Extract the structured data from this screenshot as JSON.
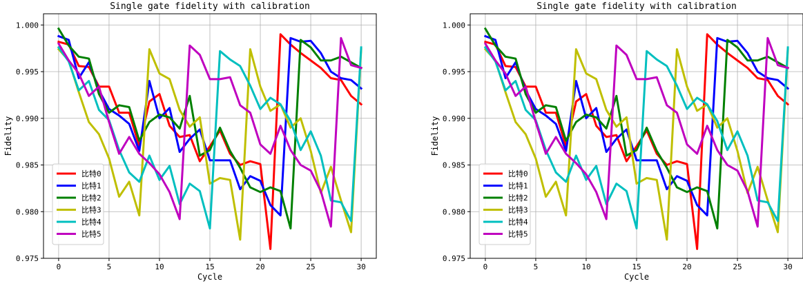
{
  "chart_data": [
    {
      "type": "line",
      "title": "Single gate fidelity with calibration",
      "xlabel": "Cycle",
      "ylabel": "Fidelity",
      "xlim": [
        -1.5,
        31.5
      ],
      "ylim": [
        0.975,
        1.0012
      ],
      "xticks": [
        "0",
        "5",
        "10",
        "15",
        "20",
        "25",
        "30"
      ],
      "yticks": [
        "0.975",
        "0.980",
        "0.985",
        "0.990",
        "0.995",
        "1.000"
      ],
      "grid": true,
      "legend_position": "lower-left",
      "x": [
        0,
        1,
        2,
        3,
        4,
        5,
        6,
        7,
        8,
        9,
        10,
        11,
        12,
        13,
        14,
        15,
        16,
        17,
        18,
        19,
        20,
        21,
        22,
        23,
        24,
        25,
        26,
        27,
        28,
        29,
        30
      ],
      "series": [
        {
          "name": "比特0",
          "color": "#ff0000",
          "values": [
            0.9982,
            0.9979,
            0.9956,
            0.9955,
            0.9934,
            0.9934,
            0.9906,
            0.9906,
            0.987,
            0.9918,
            0.9926,
            0.9892,
            0.988,
            0.9882,
            0.9854,
            0.987,
            0.9887,
            0.9862,
            0.985,
            0.9854,
            0.9851,
            0.976,
            0.999,
            0.9979,
            0.997,
            0.9962,
            0.9954,
            0.9943,
            0.9941,
            0.9924,
            0.9915
          ]
        },
        {
          "name": "比特1",
          "color": "#0000ff",
          "values": [
            0.9988,
            0.9984,
            0.9943,
            0.996,
            0.993,
            0.991,
            0.9903,
            0.9894,
            0.9865,
            0.994,
            0.99,
            0.9911,
            0.9864,
            0.9878,
            0.9888,
            0.9855,
            0.9855,
            0.9855,
            0.9824,
            0.9838,
            0.9833,
            0.9807,
            0.9796,
            0.9986,
            0.9982,
            0.9983,
            0.997,
            0.995,
            0.9943,
            0.9941,
            0.9932
          ]
        },
        {
          "name": "比特2",
          "color": "#008000",
          "values": [
            0.9996,
            0.9978,
            0.9966,
            0.9964,
            0.9926,
            0.9906,
            0.9914,
            0.9912,
            0.9876,
            0.9896,
            0.9904,
            0.9901,
            0.9889,
            0.9924,
            0.986,
            0.9866,
            0.989,
            0.9865,
            0.9847,
            0.9826,
            0.9821,
            0.9826,
            0.9822,
            0.9782,
            0.9984,
            0.9976,
            0.9962,
            0.9962,
            0.9966,
            0.996,
            0.9954
          ]
        },
        {
          "name": "比特3",
          "color": "#bfbf00",
          "values": [
            0.9974,
            0.9962,
            0.9928,
            0.9896,
            0.9883,
            0.9857,
            0.9816,
            0.9832,
            0.9796,
            0.9974,
            0.9948,
            0.9942,
            0.9909,
            0.9891,
            0.9901,
            0.983,
            0.9836,
            0.9834,
            0.977,
            0.9974,
            0.9934,
            0.9908,
            0.9915,
            0.989,
            0.99,
            0.9865,
            0.982,
            0.9848,
            0.9812,
            0.9778,
            0.9974
          ]
        },
        {
          "name": "比特4",
          "color": "#00bfbf",
          "values": [
            0.9976,
            0.9961,
            0.993,
            0.994,
            0.9909,
            0.9898,
            0.9866,
            0.9842,
            0.9832,
            0.986,
            0.9834,
            0.9849,
            0.9808,
            0.983,
            0.9822,
            0.9782,
            0.9972,
            0.9963,
            0.9956,
            0.9935,
            0.991,
            0.9922,
            0.9915,
            0.9897,
            0.9866,
            0.9886,
            0.986,
            0.9812,
            0.981,
            0.979,
            0.9976
          ]
        },
        {
          "name": "比特5",
          "color": "#bf00bf",
          "values": [
            0.998,
            0.9962,
            0.9948,
            0.9924,
            0.9934,
            0.9896,
            0.9862,
            0.988,
            0.9862,
            0.9852,
            0.984,
            0.9821,
            0.9792,
            0.9978,
            0.9968,
            0.9942,
            0.9942,
            0.9944,
            0.9914,
            0.9906,
            0.9872,
            0.9862,
            0.9892,
            0.9866,
            0.985,
            0.9844,
            0.9822,
            0.9784,
            0.9986,
            0.9957,
            0.9954
          ]
        }
      ]
    },
    {
      "type": "line",
      "title": "Single gate fidelity with calibration",
      "xlabel": "Cycle",
      "ylabel": "Fidelity",
      "xlim": [
        -1.5,
        31.5
      ],
      "ylim": [
        0.975,
        1.0012
      ],
      "xticks": [
        "0",
        "5",
        "10",
        "15",
        "20",
        "25",
        "30"
      ],
      "yticks": [
        "0.975",
        "0.980",
        "0.985",
        "0.990",
        "0.995",
        "1.000"
      ],
      "grid": true,
      "legend_position": "lower-left",
      "x": [
        0,
        1,
        2,
        3,
        4,
        5,
        6,
        7,
        8,
        9,
        10,
        11,
        12,
        13,
        14,
        15,
        16,
        17,
        18,
        19,
        20,
        21,
        22,
        23,
        24,
        25,
        26,
        27,
        28,
        29,
        30
      ],
      "series": [
        {
          "name": "比特0",
          "color": "#ff0000",
          "values": [
            0.9982,
            0.9979,
            0.9956,
            0.9955,
            0.9934,
            0.9934,
            0.9906,
            0.9906,
            0.987,
            0.9918,
            0.9926,
            0.9892,
            0.988,
            0.9882,
            0.9854,
            0.987,
            0.9887,
            0.9862,
            0.985,
            0.9854,
            0.9851,
            0.976,
            0.999,
            0.9979,
            0.997,
            0.9962,
            0.9954,
            0.9943,
            0.9941,
            0.9924,
            0.9915
          ]
        },
        {
          "name": "比特1",
          "color": "#0000ff",
          "values": [
            0.9988,
            0.9984,
            0.9943,
            0.996,
            0.993,
            0.991,
            0.9903,
            0.9894,
            0.9865,
            0.994,
            0.99,
            0.9911,
            0.9864,
            0.9878,
            0.9888,
            0.9855,
            0.9855,
            0.9855,
            0.9824,
            0.9838,
            0.9833,
            0.9807,
            0.9796,
            0.9986,
            0.9982,
            0.9983,
            0.997,
            0.995,
            0.9943,
            0.9941,
            0.9932
          ]
        },
        {
          "name": "比特2",
          "color": "#008000",
          "values": [
            0.9996,
            0.9978,
            0.9966,
            0.9964,
            0.9926,
            0.9906,
            0.9914,
            0.9912,
            0.9876,
            0.9896,
            0.9904,
            0.9901,
            0.9889,
            0.9924,
            0.986,
            0.9866,
            0.989,
            0.9865,
            0.9847,
            0.9826,
            0.9821,
            0.9826,
            0.9822,
            0.9782,
            0.9984,
            0.9976,
            0.9962,
            0.9962,
            0.9966,
            0.996,
            0.9954
          ]
        },
        {
          "name": "比特3",
          "color": "#bfbf00",
          "values": [
            0.9974,
            0.9962,
            0.9928,
            0.9896,
            0.9883,
            0.9857,
            0.9816,
            0.9832,
            0.9796,
            0.9974,
            0.9948,
            0.9942,
            0.9909,
            0.9891,
            0.9901,
            0.983,
            0.9836,
            0.9834,
            0.977,
            0.9974,
            0.9934,
            0.9908,
            0.9915,
            0.989,
            0.99,
            0.9865,
            0.982,
            0.9848,
            0.9812,
            0.9778,
            0.9974
          ]
        },
        {
          "name": "比特4",
          "color": "#00bfbf",
          "values": [
            0.9976,
            0.9961,
            0.993,
            0.994,
            0.9909,
            0.9898,
            0.9866,
            0.9842,
            0.9832,
            0.986,
            0.9834,
            0.9849,
            0.9808,
            0.983,
            0.9822,
            0.9782,
            0.9972,
            0.9963,
            0.9956,
            0.9935,
            0.991,
            0.9922,
            0.9915,
            0.9897,
            0.9866,
            0.9886,
            0.986,
            0.9812,
            0.981,
            0.979,
            0.9976
          ]
        },
        {
          "name": "比特5",
          "color": "#bf00bf",
          "values": [
            0.998,
            0.9962,
            0.9948,
            0.9924,
            0.9934,
            0.9896,
            0.9862,
            0.988,
            0.9862,
            0.9852,
            0.984,
            0.9821,
            0.9792,
            0.9978,
            0.9968,
            0.9942,
            0.9942,
            0.9944,
            0.9914,
            0.9906,
            0.9872,
            0.9862,
            0.9892,
            0.9866,
            0.985,
            0.9844,
            0.9822,
            0.9784,
            0.9986,
            0.9957,
            0.9954
          ]
        }
      ]
    }
  ]
}
